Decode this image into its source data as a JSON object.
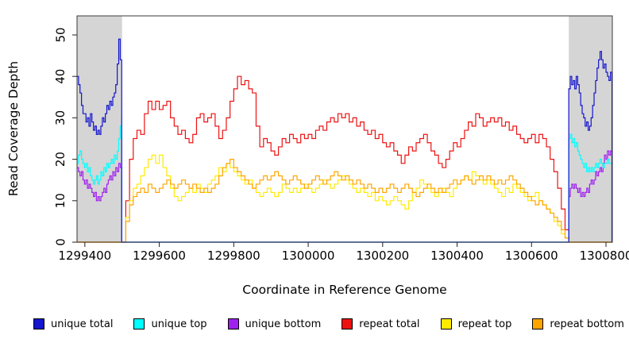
{
  "chart_data": {
    "type": "line",
    "xlabel": "Coordinate in Reference Genome",
    "ylabel": "Read Coverage Depth",
    "xlim": [
      1299379,
      1300817
    ],
    "ylim": [
      0,
      54
    ],
    "x_ticks": [
      1299400,
      1299600,
      1299800,
      1300000,
      1300200,
      1300400,
      1300600,
      1300800
    ],
    "y_ticks": [
      0,
      10,
      20,
      30,
      40,
      50
    ],
    "grid": false,
    "legend_position": "bottom",
    "shaded_regions": [
      {
        "x0": 1299379,
        "x1": 1299500,
        "color": "#d5d5d5"
      },
      {
        "x0": 1300700,
        "x1": 1300817,
        "color": "#d5d5d5"
      }
    ],
    "draw_order": [
      3,
      4,
      5,
      2,
      1,
      0
    ],
    "series": [
      {
        "name": "unique total",
        "color": "#1515cd",
        "segments": [
          {
            "x0": 1299379,
            "dx": 4,
            "values": [
              40,
              38,
              36,
              33,
              31,
              31,
              29,
              30,
              28,
              31,
              29,
              27,
              28,
              26,
              27,
              26,
              28,
              30,
              29,
              31,
              33,
              32,
              34,
              33,
              35,
              36,
              38,
              43,
              49,
              44,
              39
            ]
          },
          {
            "x0": 1300700,
            "dx": 4,
            "values": [
              37,
              40,
              38,
              39,
              37,
              40,
              38,
              36,
              33,
              31,
              30,
              28,
              29,
              27,
              28,
              30,
              33,
              36,
              39,
              42,
              44,
              46,
              44,
              42,
              43,
              41,
              40,
              39,
              41,
              40
            ]
          }
        ]
      },
      {
        "name": "unique top",
        "color": "#00ffff",
        "segments": [
          {
            "x0": 1299379,
            "dx": 4,
            "values": [
              19,
              21,
              22,
              20,
              19,
              18,
              19,
              17,
              18,
              16,
              15,
              14,
              15,
              16,
              14,
              15,
              17,
              16,
              18,
              17,
              19,
              18,
              19,
              20,
              19,
              21,
              20,
              22,
              25,
              28,
              30
            ]
          },
          {
            "x0": 1300700,
            "dx": 4,
            "values": [
              25,
              26,
              24,
              25,
              23,
              24,
              22,
              21,
              20,
              19,
              18,
              19,
              17,
              18,
              17,
              18,
              17,
              18,
              19,
              18,
              19,
              20,
              19,
              18,
              19,
              19,
              20,
              19,
              19,
              19
            ]
          }
        ]
      },
      {
        "name": "unique bottom",
        "color": "#a020f0",
        "segments": [
          {
            "x0": 1299379,
            "dx": 4,
            "values": [
              18,
              17,
              16,
              17,
              15,
              14,
              15,
              13,
              14,
              13,
              12,
              11,
              12,
              10,
              11,
              10,
              11,
              12,
              13,
              12,
              14,
              15,
              16,
              15,
              17,
              16,
              18,
              17,
              19,
              18,
              19
            ]
          },
          {
            "x0": 1300700,
            "dx": 4,
            "values": [
              11,
              13,
              14,
              13,
              14,
              13,
              12,
              13,
              11,
              12,
              11,
              12,
              13,
              12,
              14,
              15,
              14,
              15,
              17,
              16,
              17,
              18,
              17,
              19,
              21,
              20,
              22,
              21,
              22,
              22
            ]
          }
        ]
      },
      {
        "name": "repeat total",
        "color": "#ee1111",
        "segments": [
          {
            "x0": 1299500,
            "dx": 10,
            "values": [
              0,
              10,
              20,
              25,
              27,
              26,
              31,
              34,
              32,
              34,
              32,
              33,
              34,
              30,
              28,
              26,
              27,
              25,
              24,
              26,
              30,
              31,
              29,
              30,
              31,
              28,
              25,
              27,
              30,
              34,
              37,
              40,
              38,
              39,
              37,
              36,
              28,
              23,
              25,
              24,
              22,
              21,
              23,
              25,
              24,
              26,
              25,
              24,
              26,
              25,
              26,
              25,
              27,
              28,
              27,
              29,
              30,
              29,
              31,
              30,
              31,
              29,
              30,
              28,
              29,
              27,
              26,
              27,
              25,
              26,
              24,
              23,
              24,
              22,
              21,
              19,
              21,
              23,
              22,
              24,
              25,
              26,
              24,
              22,
              21,
              19,
              18,
              20,
              22,
              24,
              23,
              25,
              27,
              29,
              28,
              31,
              30,
              28,
              29,
              30,
              29,
              30,
              28,
              29,
              27,
              28,
              26,
              25,
              24,
              25,
              26,
              24,
              26,
              25,
              23,
              20,
              17,
              13,
              8,
              3,
              0
            ]
          }
        ]
      },
      {
        "name": "repeat top",
        "color": "#ffeb00",
        "segments": [
          {
            "x0": 1299500,
            "dx": 10,
            "values": [
              0,
              6,
              10,
              13,
              14,
              16,
              18,
              20,
              21,
              19,
              21,
              18,
              16,
              13,
              11,
              10,
              11,
              12,
              13,
              12,
              14,
              13,
              12,
              14,
              15,
              16,
              18,
              17,
              19,
              18,
              17,
              16,
              15,
              14,
              15,
              13,
              12,
              11,
              12,
              13,
              12,
              11,
              12,
              14,
              13,
              12,
              13,
              12,
              13,
              14,
              13,
              12,
              13,
              14,
              15,
              14,
              13,
              14,
              15,
              16,
              15,
              14,
              13,
              12,
              13,
              12,
              11,
              12,
              10,
              11,
              10,
              9,
              10,
              11,
              10,
              9,
              8,
              10,
              12,
              13,
              15,
              14,
              13,
              12,
              11,
              12,
              13,
              12,
              11,
              13,
              14,
              15,
              16,
              15,
              17,
              16,
              15,
              14,
              15,
              14,
              13,
              12,
              11,
              13,
              12,
              14,
              13,
              12,
              11,
              10,
              11,
              12,
              10,
              9,
              8,
              7,
              5,
              4,
              2,
              1,
              0
            ]
          }
        ]
      },
      {
        "name": "repeat bottom",
        "color": "#ffa500",
        "segments": [
          {
            "x0": 1299500,
            "dx": 10,
            "values": [
              0,
              5,
              9,
              11,
              12,
              13,
              12,
              14,
              13,
              12,
              13,
              14,
              15,
              14,
              13,
              14,
              15,
              14,
              13,
              14,
              13,
              12,
              13,
              12,
              13,
              14,
              16,
              18,
              19,
              20,
              18,
              17,
              16,
              15,
              14,
              13,
              14,
              15,
              16,
              15,
              16,
              17,
              16,
              15,
              14,
              15,
              16,
              15,
              14,
              13,
              14,
              15,
              16,
              15,
              14,
              15,
              16,
              17,
              16,
              15,
              16,
              15,
              14,
              15,
              14,
              13,
              14,
              13,
              12,
              13,
              12,
              13,
              14,
              13,
              12,
              13,
              14,
              13,
              12,
              11,
              12,
              13,
              14,
              13,
              12,
              13,
              12,
              13,
              14,
              15,
              14,
              15,
              16,
              15,
              14,
              15,
              16,
              15,
              16,
              15,
              14,
              15,
              14,
              15,
              16,
              15,
              14,
              13,
              12,
              11,
              10,
              9,
              10,
              9,
              8,
              7,
              6,
              5,
              3,
              1,
              0
            ]
          }
        ]
      }
    ]
  }
}
